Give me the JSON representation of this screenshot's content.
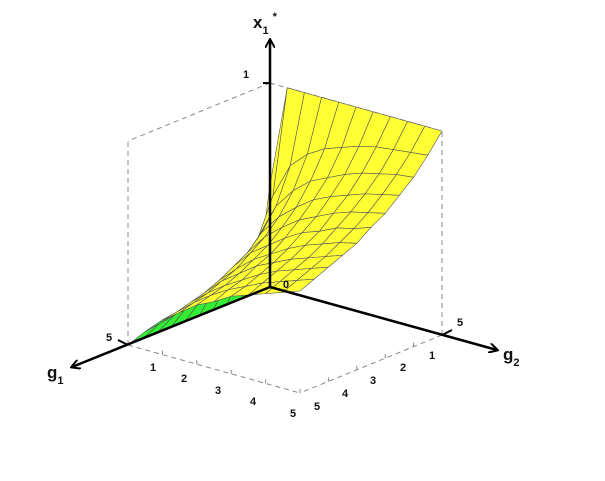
{
  "chart_data": {
    "type": "surface3d",
    "title": "",
    "axes": {
      "x": {
        "label": "g",
        "label_sub": "1",
        "range": [
          0,
          5
        ],
        "ticks": [
          "1",
          "2",
          "3",
          "4",
          "5"
        ],
        "end_tick": "5"
      },
      "y": {
        "label": "g",
        "label_sub": "2",
        "range": [
          0,
          5
        ],
        "ticks": [
          "1",
          "2",
          "3",
          "4",
          "5"
        ],
        "end_tick": "5"
      },
      "z": {
        "label": "x",
        "label_sub": "1",
        "label_sup": "*",
        "range": [
          0,
          1
        ],
        "ticks": [
          "0",
          "1"
        ]
      }
    },
    "grid_g1": [
      0,
      0.5,
      1,
      1.5,
      2,
      2.5,
      3,
      3.5,
      4,
      4.5,
      5
    ],
    "grid_g2": [
      0,
      0.5,
      1,
      1.5,
      2,
      2.5,
      3,
      3.5,
      4,
      4.5,
      5
    ],
    "z_rows_by_g1": [
      [
        0.5,
        1,
        1,
        1,
        1,
        1,
        1,
        1,
        1,
        1,
        1
      ],
      [
        0,
        0.5,
        0.67,
        0.75,
        0.8,
        0.83,
        0.86,
        0.88,
        0.89,
        0.9,
        0.91
      ],
      [
        0,
        0.33,
        0.5,
        0.6,
        0.67,
        0.71,
        0.75,
        0.78,
        0.8,
        0.82,
        0.83
      ],
      [
        0,
        0.25,
        0.4,
        0.5,
        0.57,
        0.63,
        0.67,
        0.7,
        0.73,
        0.75,
        0.77
      ],
      [
        0,
        0.2,
        0.33,
        0.43,
        0.5,
        0.56,
        0.6,
        0.64,
        0.67,
        0.69,
        0.71
      ],
      [
        0,
        0.17,
        0.29,
        0.38,
        0.44,
        0.5,
        0.55,
        0.58,
        0.62,
        0.64,
        0.67
      ],
      [
        0,
        0.14,
        0.25,
        0.33,
        0.4,
        0.45,
        0.5,
        0.54,
        0.57,
        0.6,
        0.62
      ],
      [
        0,
        0.13,
        0.22,
        0.3,
        0.36,
        0.42,
        0.46,
        0.5,
        0.53,
        0.56,
        0.59
      ],
      [
        0,
        0.11,
        0.2,
        0.27,
        0.33,
        0.38,
        0.43,
        0.47,
        0.5,
        0.53,
        0.56
      ],
      [
        0,
        0.1,
        0.18,
        0.25,
        0.31,
        0.36,
        0.4,
        0.44,
        0.47,
        0.5,
        0.53
      ],
      [
        0,
        0.09,
        0.17,
        0.23,
        0.29,
        0.33,
        0.38,
        0.41,
        0.44,
        0.47,
        0.5
      ]
    ],
    "colors": {
      "top_face": "#ffff33",
      "under_face": "#33ee33",
      "mesh": "#555555",
      "box": "#888888",
      "axis": "#000000"
    },
    "grid": false,
    "legend": "none"
  }
}
